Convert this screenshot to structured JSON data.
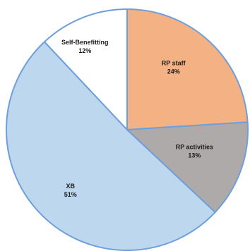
{
  "chart_data": {
    "type": "pie",
    "start_angle_deg": 0,
    "direction": "clockwise",
    "slices": [
      {
        "label": "RP staff",
        "value": 24,
        "value_label": "24%",
        "color": "#f4b183"
      },
      {
        "label": "RP activities",
        "value": 13,
        "value_label": "13%",
        "color": "#aeaaaa"
      },
      {
        "label": "XB",
        "value": 51,
        "value_label": "51%",
        "color": "#bdd7ee"
      },
      {
        "label": "Self-Benefitting",
        "value": 12,
        "value_label": "12%",
        "color": "#ffffff"
      }
    ],
    "edge_color": "#6f9fd8"
  }
}
